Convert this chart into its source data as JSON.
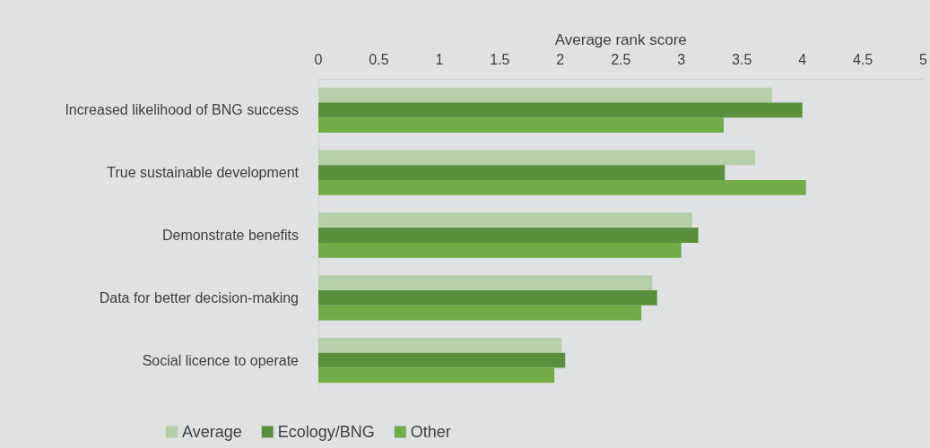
{
  "chart_data": {
    "type": "bar",
    "orientation": "horizontal",
    "xlabel": "Average rank score",
    "categories": [
      "Increased likelihood of BNG success",
      "True sustainable development",
      "Demonstrate benefits",
      "Data for better decision-making",
      "Social licence to operate"
    ],
    "series": [
      {
        "name": "Average",
        "color": "#b5d0a8",
        "values": [
          3.75,
          3.61,
          3.09,
          2.76,
          2.01
        ]
      },
      {
        "name": "Ecology/BNG",
        "color": "#5a8f3c",
        "values": [
          4.0,
          3.36,
          3.14,
          2.8,
          2.04
        ]
      },
      {
        "name": "Other",
        "color": "#70ad47",
        "values": [
          3.35,
          4.03,
          3.0,
          2.67,
          1.95
        ]
      }
    ],
    "xlim": [
      0,
      5
    ],
    "xticks": [
      0,
      0.5,
      1,
      1.5,
      2,
      2.5,
      3,
      3.5,
      4,
      4.5,
      5
    ],
    "grid": false,
    "legend": "bottom"
  }
}
